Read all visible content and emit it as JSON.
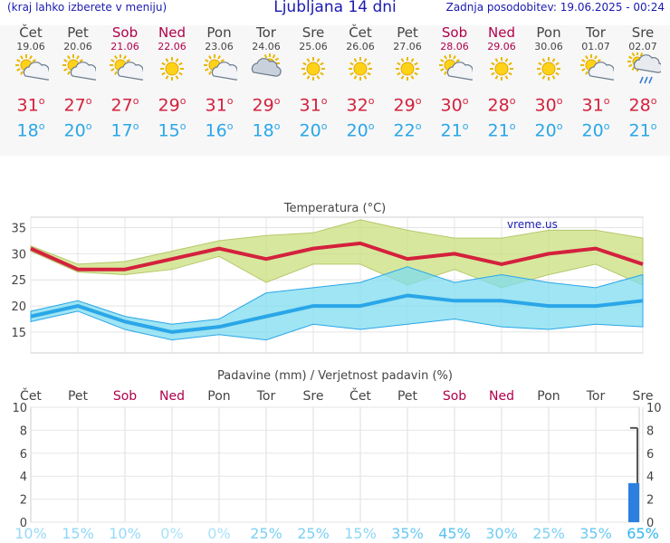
{
  "header": {
    "left_note": "(kraj lahko izberete v meniju)",
    "title": "Ljubljana 14 dni",
    "updated": "Zadnja posodobitev: 19.06.2025 - 00:24"
  },
  "days": [
    {
      "name": "Čet",
      "date": "19.06",
      "weekend": false,
      "icon": "sun-cloud-icon",
      "tmax": "31",
      "tmin": "18"
    },
    {
      "name": "Pet",
      "date": "20.06",
      "weekend": false,
      "icon": "sun-cloud-icon",
      "tmax": "27",
      "tmin": "20"
    },
    {
      "name": "Sob",
      "date": "21.06",
      "weekend": true,
      "icon": "sun-cloud-icon",
      "tmax": "27",
      "tmin": "17"
    },
    {
      "name": "Ned",
      "date": "22.06",
      "weekend": true,
      "icon": "sun-icon",
      "tmax": "29",
      "tmin": "15"
    },
    {
      "name": "Pon",
      "date": "23.06",
      "weekend": false,
      "icon": "sun-cloud-icon",
      "tmax": "31",
      "tmin": "16"
    },
    {
      "name": "Tor",
      "date": "24.06",
      "weekend": false,
      "icon": "cloud-sun-icon",
      "tmax": "29",
      "tmin": "18"
    },
    {
      "name": "Sre",
      "date": "25.06",
      "weekend": false,
      "icon": "sun-icon",
      "tmax": "31",
      "tmin": "20"
    },
    {
      "name": "Čet",
      "date": "26.06",
      "weekend": false,
      "icon": "sun-icon",
      "tmax": "32",
      "tmin": "20"
    },
    {
      "name": "Pet",
      "date": "27.06",
      "weekend": false,
      "icon": "sun-icon",
      "tmax": "29",
      "tmin": "22"
    },
    {
      "name": "Sob",
      "date": "28.06",
      "weekend": true,
      "icon": "sun-cloud-icon",
      "tmax": "30",
      "tmin": "21"
    },
    {
      "name": "Ned",
      "date": "29.06",
      "weekend": true,
      "icon": "sun-icon",
      "tmax": "28",
      "tmin": "21"
    },
    {
      "name": "Pon",
      "date": "30.06",
      "weekend": false,
      "icon": "sun-icon",
      "tmax": "30",
      "tmin": "20"
    },
    {
      "name": "Tor",
      "date": "01.07",
      "weekend": false,
      "icon": "sun-cloud-icon",
      "tmax": "31",
      "tmin": "20"
    },
    {
      "name": "Sre",
      "date": "02.07",
      "weekend": false,
      "icon": "rain-cloud-icon",
      "tmax": "28",
      "tmin": "21"
    }
  ],
  "colors": {
    "max_line": "#d4213d",
    "min_line": "#2aa6e8",
    "max_band": "#c9e07d",
    "min_band": "#7fdcef",
    "weekend": "#b0004c",
    "precip_bar": "#2a7fe0"
  },
  "chart_data": [
    {
      "type": "line",
      "title": "Temperatura (°C)",
      "watermark": "vreme.us",
      "ylim": [
        11,
        37
      ],
      "yticks": [
        15,
        20,
        25,
        30,
        35
      ],
      "series": [
        {
          "values": [
            31,
            27,
            27,
            29,
            31,
            29,
            31,
            32,
            29,
            30,
            28,
            30,
            31,
            28
          ],
          "band_high": [
            31.5,
            28,
            28.5,
            30.5,
            32.5,
            33.5,
            34,
            36.5,
            34.5,
            33,
            33,
            34.5,
            34.5,
            33
          ],
          "band_low": [
            30.5,
            26.5,
            26,
            27,
            29.5,
            24.5,
            28,
            28,
            24,
            27,
            23.5,
            26,
            28,
            24
          ]
        },
        {
          "values": [
            18,
            20,
            17,
            15,
            16,
            18,
            20,
            20,
            22,
            21,
            21,
            20,
            20,
            21
          ],
          "band_high": [
            19,
            21,
            18,
            16.5,
            17.5,
            22.5,
            23.5,
            24.5,
            27.5,
            24.5,
            26,
            24.5,
            23.5,
            26
          ],
          "band_low": [
            17,
            19,
            15.5,
            13.5,
            14.5,
            13.5,
            16.5,
            15.5,
            16.5,
            17.5,
            16,
            15.5,
            16.5,
            16
          ]
        }
      ]
    },
    {
      "type": "bar",
      "title": "Padavine (mm) / Verjetnost padavin (%)",
      "ylim": [
        0,
        10
      ],
      "yticks": [
        0,
        2,
        4,
        6,
        8,
        10
      ],
      "values": [
        0,
        0,
        0,
        0,
        0,
        0,
        0,
        0,
        0,
        0,
        0,
        0,
        0,
        3.4
      ],
      "error_high": [
        null,
        null,
        null,
        null,
        null,
        null,
        null,
        null,
        null,
        null,
        null,
        null,
        null,
        8.2
      ],
      "probability": [
        "10%",
        "15%",
        "10%",
        "0%",
        "0%",
        "25%",
        "25%",
        "15%",
        "35%",
        "45%",
        "30%",
        "25%",
        "35%",
        "65%"
      ]
    }
  ]
}
